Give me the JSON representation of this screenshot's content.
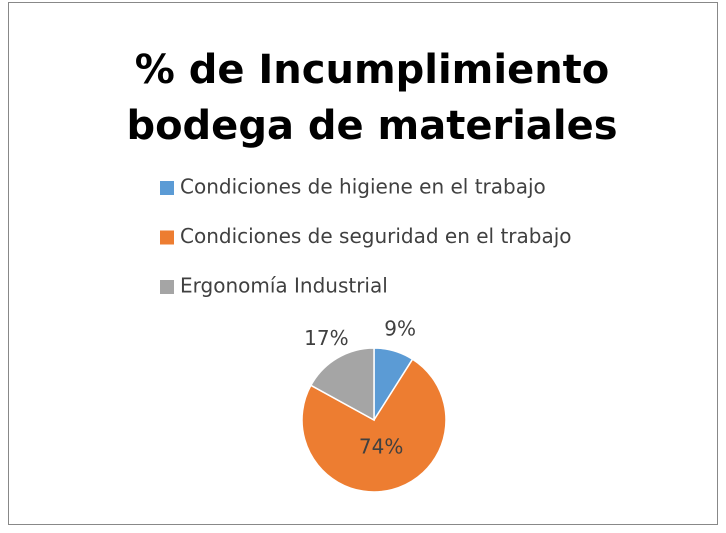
{
  "chart_data": {
    "type": "pie",
    "title": [
      "% de Incumplimiento",
      "bodega de materiales"
    ],
    "categories": [
      "Condiciones de higiene en el trabajo",
      "Condiciones de seguridad en el trabajo",
      "Ergonomía Industrial"
    ],
    "values": [
      9,
      74,
      17
    ],
    "value_labels": [
      "9%",
      "74%",
      "17%"
    ],
    "colors": [
      "#5b9bd5",
      "#ed7d31",
      "#a5a5a5"
    ],
    "legend": "top"
  }
}
